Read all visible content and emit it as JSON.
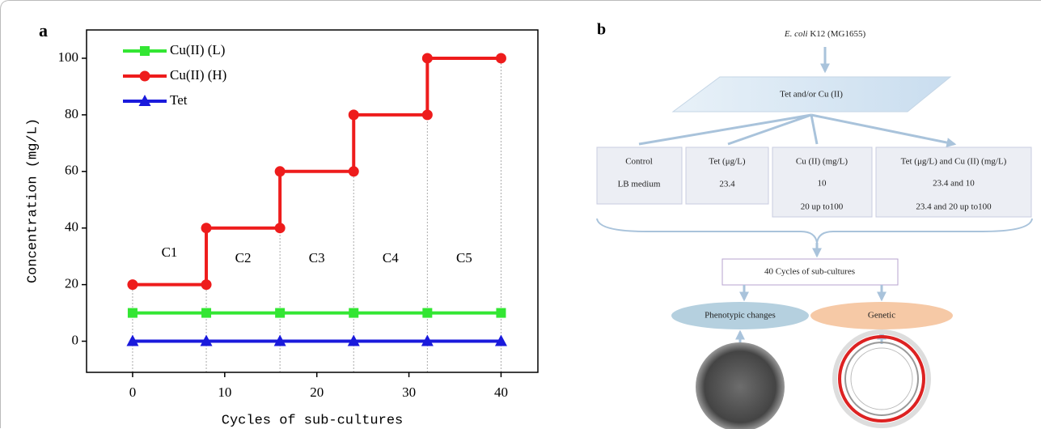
{
  "chart_data": {
    "type": "line",
    "panel": "a",
    "xlabel": "Cycles of sub-cultures",
    "ylabel": "Concentration (mg/L)",
    "xlim": [
      -5,
      44
    ],
    "ylim": [
      -11,
      110
    ],
    "xticks": [
      0,
      10,
      20,
      30,
      40
    ],
    "yticks": [
      0,
      20,
      40,
      60,
      80,
      100
    ],
    "series": [
      {
        "name": "Cu(II) (L)",
        "color": "#33e633",
        "marker": "square",
        "x": [
          0,
          8,
          16,
          24,
          32,
          40
        ],
        "values": [
          10,
          10,
          10,
          10,
          10,
          10
        ]
      },
      {
        "name": "Cu(II) (H)",
        "color": "#ee1c1c",
        "marker": "circle",
        "x": [
          0,
          8,
          8,
          16,
          16,
          24,
          24,
          32,
          32,
          40
        ],
        "values": [
          20,
          20,
          40,
          40,
          60,
          60,
          80,
          80,
          100,
          100
        ]
      },
      {
        "name": "Tet",
        "color": "#1a1adc",
        "marker": "triangle",
        "x": [
          0,
          8,
          16,
          24,
          32,
          40
        ],
        "values": [
          0,
          0,
          0,
          0,
          0,
          0
        ]
      }
    ],
    "annotations": [
      "C1",
      "C2",
      "C3",
      "C4",
      "C5"
    ]
  },
  "diagram": {
    "panel": "b",
    "source": {
      "organism": "E. coli",
      "strain": "K12 (MG1655)"
    },
    "treatment": "Tet and/or Cu (II)",
    "groups": [
      [
        "Control",
        "LB medium"
      ],
      [
        "Tet (μg/L)",
        "23.4"
      ],
      [
        "Cu (II) (mg/L)",
        "10",
        "20 up to100"
      ],
      [
        "Tet (μg/L) and Cu (II) (mg/L)",
        "23.4 and 10",
        "23.4 and 20 up to100"
      ]
    ],
    "cycles": "40 Cycles of sub-cultures",
    "outcomes": [
      "Phenotypic changes",
      "Genetic"
    ]
  }
}
